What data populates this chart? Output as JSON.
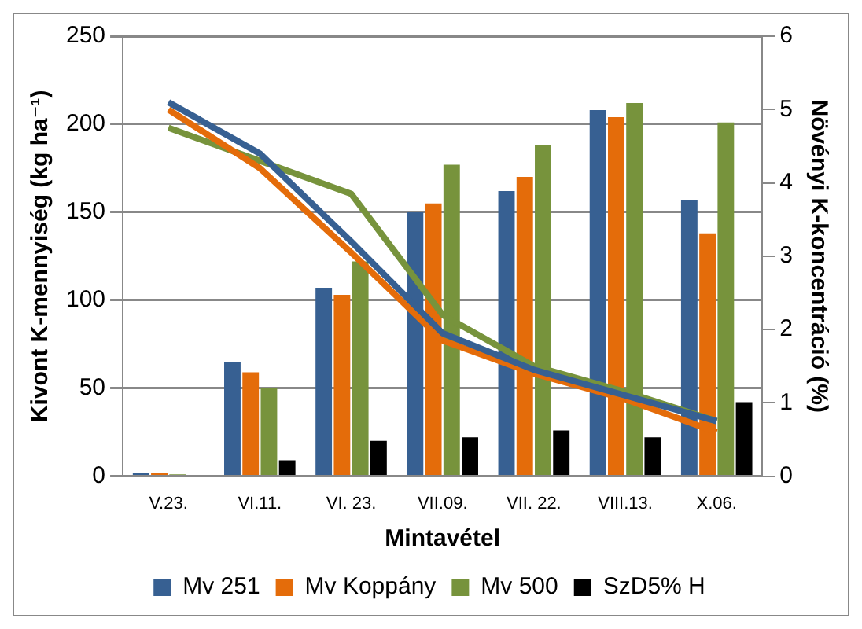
{
  "chart_data": {
    "type": "bar",
    "xlabel": "Mintavétel",
    "ylabel": "Kivont K-mennyiség (kg ha⁻¹)",
    "y2label": "Növényi K-koncentráció (%)",
    "categories": [
      "V.23.",
      "VI.11.",
      "VI. 23.",
      "VII.09.",
      "VII. 22.",
      "VIII.13.",
      "X.06."
    ],
    "series": [
      {
        "name": "Mv 251",
        "color": "#376092",
        "values": [
          2,
          65,
          107,
          150,
          162,
          208,
          157
        ]
      },
      {
        "name": "Mv Koppány",
        "color": "#e46c0a",
        "values": [
          2,
          59,
          103,
          155,
          170,
          204,
          138
        ]
      },
      {
        "name": "Mv 500",
        "color": "#77933c",
        "values": [
          1,
          50,
          122,
          177,
          188,
          212,
          201
        ]
      },
      {
        "name": "SzD5% H",
        "color": "#000000",
        "values": [
          null,
          9,
          20,
          22,
          26,
          22,
          42
        ]
      },
      {
        "type": "line",
        "axis": "y2",
        "color": "#376092",
        "values": [
          5.1,
          4.4,
          3.2,
          1.95,
          1.45,
          1.1,
          0.75
        ]
      },
      {
        "type": "line",
        "axis": "y2",
        "color": "#e46c0a",
        "values": [
          5.0,
          4.2,
          3.05,
          1.85,
          1.4,
          1.05,
          0.6
        ]
      },
      {
        "type": "line",
        "axis": "y2",
        "color": "#77933c",
        "values": [
          4.75,
          4.3,
          3.85,
          2.2,
          1.5,
          1.15,
          0.75
        ]
      }
    ],
    "ylim": [
      0,
      250
    ],
    "yticks": [
      0,
      50,
      100,
      150,
      200,
      250
    ],
    "y2lim": [
      0,
      6
    ],
    "y2ticks": [
      0,
      1,
      2,
      3,
      4,
      5,
      6
    ],
    "grid": "y",
    "legend": "bottom",
    "marker": "none"
  }
}
